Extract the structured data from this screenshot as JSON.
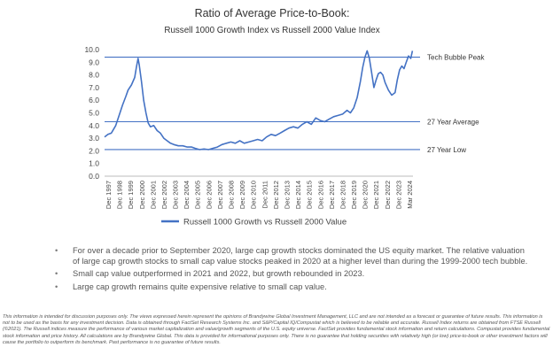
{
  "chart_data": {
    "type": "line",
    "title": "Ratio of Average Price-to-Book:",
    "subtitle": "Russell 1000 Growth Index vs Russell 2000 Value Index",
    "ylim": [
      0,
      10
    ],
    "y_ticks": [
      "0.0",
      "1.0",
      "2.0",
      "3.0",
      "4.0",
      "5.0",
      "6.0",
      "7.0",
      "8.0",
      "9.0",
      "10.0"
    ],
    "x_tick_labels": [
      "Dec 1997",
      "Dec 1998",
      "Dec 1999",
      "Dec 2000",
      "Dec 2001",
      "Dec 2002",
      "Dec 2003",
      "Dec 2004",
      "Dec 2005",
      "Dec 2006",
      "Dec 2007",
      "Dec 2008",
      "Dec 2009",
      "Dec 2010",
      "Dec 2011",
      "Dec 2012",
      "Dec 2013",
      "Dec 2014",
      "Dec 2015",
      "Dec 2016",
      "Dec 2017",
      "Dec 2018",
      "Dec 2019",
      "Dec 2020",
      "Dec 2021",
      "Dec 2022",
      "Dec 2023",
      "Mar 2024"
    ],
    "x_range": [
      1996.9,
      2024.5
    ],
    "grid": false,
    "legend_position": "bottom",
    "series": [
      {
        "name": "Russell 1000 Growth vs Russell 2000 Value",
        "color": "#4472c4",
        "points": [
          [
            1996.9,
            3.1
          ],
          [
            1997.2,
            3.3
          ],
          [
            1997.5,
            3.4
          ],
          [
            1997.9,
            4.0
          ],
          [
            1998.2,
            4.8
          ],
          [
            1998.5,
            5.6
          ],
          [
            1998.8,
            6.3
          ],
          [
            1999.0,
            6.8
          ],
          [
            1999.3,
            7.2
          ],
          [
            1999.6,
            7.8
          ],
          [
            1999.75,
            8.6
          ],
          [
            1999.9,
            9.3
          ],
          [
            2000.0,
            8.8
          ],
          [
            2000.2,
            7.5
          ],
          [
            2000.4,
            6.0
          ],
          [
            2000.6,
            5.0
          ],
          [
            2000.8,
            4.2
          ],
          [
            2001.0,
            3.9
          ],
          [
            2001.3,
            4.0
          ],
          [
            2001.6,
            3.6
          ],
          [
            2001.9,
            3.4
          ],
          [
            2002.2,
            3.0
          ],
          [
            2002.5,
            2.8
          ],
          [
            2002.8,
            2.6
          ],
          [
            2003.1,
            2.5
          ],
          [
            2003.5,
            2.4
          ],
          [
            2003.9,
            2.4
          ],
          [
            2004.3,
            2.3
          ],
          [
            2004.7,
            2.3
          ],
          [
            2005.0,
            2.2
          ],
          [
            2005.4,
            2.1
          ],
          [
            2005.8,
            2.15
          ],
          [
            2006.2,
            2.1
          ],
          [
            2006.6,
            2.2
          ],
          [
            2007.0,
            2.3
          ],
          [
            2007.4,
            2.5
          ],
          [
            2007.8,
            2.6
          ],
          [
            2008.2,
            2.7
          ],
          [
            2008.6,
            2.6
          ],
          [
            2009.0,
            2.8
          ],
          [
            2009.4,
            2.6
          ],
          [
            2009.8,
            2.7
          ],
          [
            2010.2,
            2.8
          ],
          [
            2010.6,
            2.9
          ],
          [
            2011.0,
            2.8
          ],
          [
            2011.4,
            3.1
          ],
          [
            2011.8,
            3.3
          ],
          [
            2012.2,
            3.2
          ],
          [
            2012.6,
            3.4
          ],
          [
            2013.0,
            3.6
          ],
          [
            2013.4,
            3.8
          ],
          [
            2013.8,
            3.9
          ],
          [
            2014.2,
            3.8
          ],
          [
            2014.6,
            4.1
          ],
          [
            2015.0,
            4.3
          ],
          [
            2015.4,
            4.1
          ],
          [
            2015.8,
            4.6
          ],
          [
            2016.2,
            4.4
          ],
          [
            2016.6,
            4.3
          ],
          [
            2017.0,
            4.5
          ],
          [
            2017.4,
            4.7
          ],
          [
            2017.8,
            4.8
          ],
          [
            2018.2,
            4.9
          ],
          [
            2018.6,
            5.2
          ],
          [
            2018.9,
            5.0
          ],
          [
            2019.2,
            5.4
          ],
          [
            2019.5,
            6.2
          ],
          [
            2019.8,
            7.5
          ],
          [
            2020.0,
            8.6
          ],
          [
            2020.2,
            9.4
          ],
          [
            2020.4,
            9.9
          ],
          [
            2020.6,
            9.3
          ],
          [
            2020.8,
            8.2
          ],
          [
            2021.0,
            7.0
          ],
          [
            2021.2,
            7.6
          ],
          [
            2021.4,
            8.1
          ],
          [
            2021.6,
            8.2
          ],
          [
            2021.8,
            8.0
          ],
          [
            2022.0,
            7.4
          ],
          [
            2022.3,
            6.8
          ],
          [
            2022.6,
            6.4
          ],
          [
            2022.9,
            6.6
          ],
          [
            2023.1,
            7.6
          ],
          [
            2023.3,
            8.4
          ],
          [
            2023.5,
            8.7
          ],
          [
            2023.7,
            8.5
          ],
          [
            2023.9,
            9.0
          ],
          [
            2024.1,
            9.5
          ],
          [
            2024.3,
            9.3
          ],
          [
            2024.45,
            9.9
          ]
        ]
      }
    ],
    "reference_lines": [
      {
        "label": "Tech Bubble Peak",
        "value": 9.4
      },
      {
        "label": "27 Year Average",
        "value": 4.3
      },
      {
        "label": "27 Year Low",
        "value": 2.1
      }
    ]
  },
  "bullets": [
    "For over a decade prior to September 2020, large cap growth stocks dominated the US equity market.  The relative valuation of large cap growth stocks to small cap value stocks peaked in 2020 at a higher level than during the 1999-2000 tech bubble.",
    "Small cap value outperformed in 2021 and 2022, but growth rebounded in 2023.",
    "Large cap growth remains quite expensive relative to small cap value."
  ],
  "bullet_marker": "•",
  "disclaimer": "This information is intended for discussion purposes only. The views expressed herein represent the opinions of Brandywine Global Investment Management, LLC and are not intended as a forecast or guarantee of future results. This information is not to be used as the basis for any investment decision. Data is obtained through FactSet Research Systems Inc. and S&P/Capital IQ/Compustat which is believed to be reliable and accurate. Russell Index returns are obtained from FTSE Russell (©2021). The Russell indices measure the performance of various market capitalization and value/growth segments of the U.S. equity universe. FactSet provides fundamental stock information and return calculations. Compustat provides fundamental stock information and price history. All calculations are by Brandywine Global. This data is provided for informational purposes only. There is no guarantee that holding securities with relatively high (or low) price-to-book or other investment factors will cause the portfolio to outperform its benchmark. Past performance is no guarantee of future results."
}
